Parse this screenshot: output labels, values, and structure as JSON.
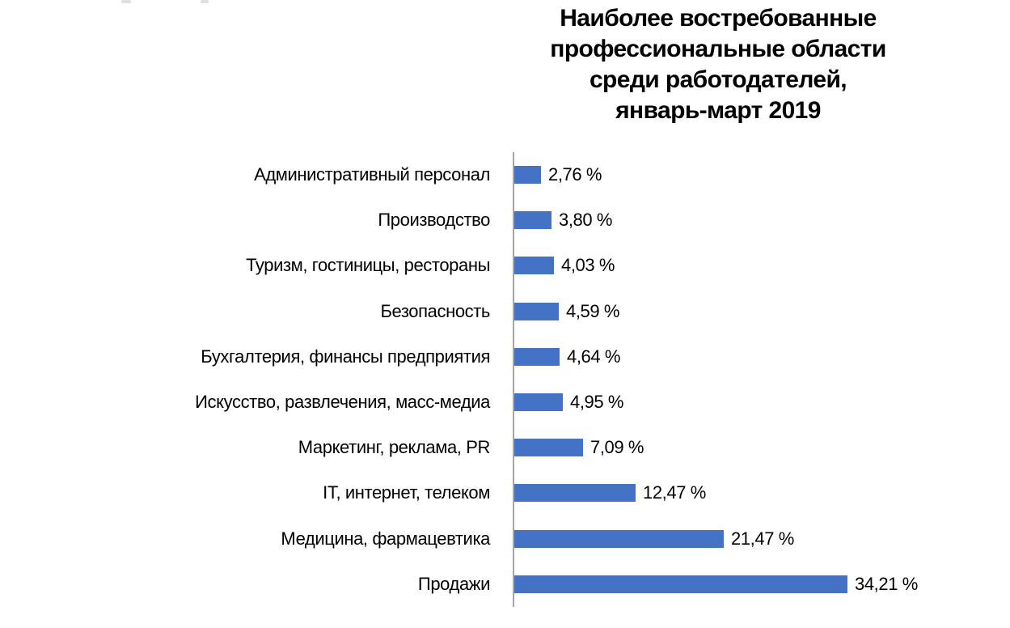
{
  "chart_data": {
    "type": "bar",
    "orientation": "horizontal",
    "title": "Наиболее востребованные профессиональные области среди работодателей, январь-март 2019",
    "title_lines": [
      "Наиболее востребованные",
      "профессиональные области",
      "среди работодателей,",
      "январь-март 2019"
    ],
    "categories": [
      "Административный персонал",
      "Производство",
      "Туризм, гостиницы, рестораны",
      "Безопасность",
      "Бухгалтерия, финансы предприятия",
      "Искусство, развлечения, масс-медиа",
      "Маркетинг, реклама, PR",
      "IT, интернет, телеком",
      "Медицина, фармацевтика",
      "Продажи"
    ],
    "values": [
      2.76,
      3.8,
      4.03,
      4.59,
      4.64,
      4.95,
      7.09,
      12.47,
      21.47,
      34.21
    ],
    "value_labels": [
      "2,76 %",
      "3,80 %",
      "4,03 %",
      "4,59 %",
      "4,64 %",
      "4,95 %",
      "7,09 %",
      "12,47 %",
      "21,47 %",
      "34,21 %"
    ],
    "xlabel": "",
    "ylabel": "",
    "xlim": [
      0,
      35
    ],
    "grid": false,
    "legend": false,
    "bar_color": "#4472C4",
    "axis_color": "#A6A6A6",
    "text_color": "#000000",
    "background_color": "#FFFFFF"
  }
}
